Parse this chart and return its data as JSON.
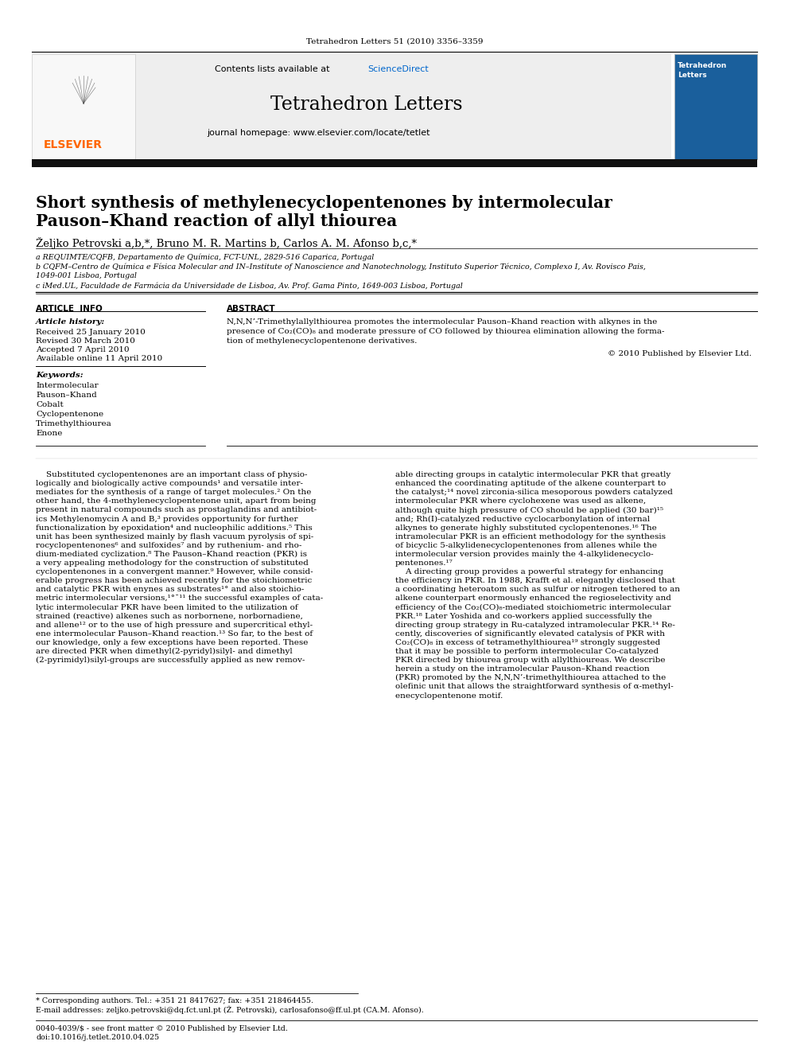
{
  "page_title": "Tetrahedron Letters 51 (2010) 3356–3359",
  "journal_name": "Tetrahedron Letters",
  "contents_text": "Contents lists available at ",
  "sciencedirect_text": "ScienceDirect",
  "homepage_text": "journal homepage: www.elsevier.com/locate/tetlet",
  "article_title_line1": "Short synthesis of methylenecyclopentenones by intermolecular",
  "article_title_line2": "Pauson–Khand reaction of allyl thiourea",
  "authors": "Željko Petrovski a,b,*, Bruno M. R. Martins b, Carlos A. M. Afonso b,c,*",
  "affil1": "a REQUIMTE/CQFB, Departamento de Química, FCT-UNL, 2829-516 Caparica, Portugal",
  "affil2": "b CQFM–Centro de Química e Física Molecular and IN–Institute of Nanoscience and Nanotechnology, Instituto Superior Técnico, Complexo I, Av. Rovisco Pais,",
  "affil2b": "1049-001 Lisboa, Portugal",
  "affil3": "c iMed.UL, Faculdade de Farmácia da Universidade de Lisboa, Av. Prof. Gama Pinto, 1649-003 Lisboa, Portugal",
  "article_info_header": "ARTICLE  INFO",
  "abstract_header": "ABSTRACT",
  "article_history_label": "Article history:",
  "received": "Received 25 January 2010",
  "revised": "Revised 30 March 2010",
  "accepted": "Accepted 7 April 2010",
  "available": "Available online 11 April 2010",
  "keywords_label": "Keywords:",
  "keywords": [
    "Intermolecular",
    "Pauson–Khand",
    "Cobalt",
    "Cyclopentenone",
    "Trimethylthiourea",
    "Enone"
  ],
  "abstract_lines": [
    "N,N,N’-Trimethylallylthiourea promotes the intermolecular Pauson–Khand reaction with alkynes in the",
    "presence of Co₂(CO)₈ and moderate pressure of CO followed by thiourea elimination allowing the forma-",
    "tion of methylenecyclopentenone derivatives."
  ],
  "copyright": "© 2010 Published by Elsevier Ltd.",
  "left_col_lines": [
    "    Substituted cyclopentenones are an important class of physio-",
    "logically and biologically active compounds¹ and versatile inter-",
    "mediates for the synthesis of a range of target molecules.² On the",
    "other hand, the 4-methylenecyclopentenone unit, apart from being",
    "present in natural compounds such as prostaglandins and antibiot-",
    "ics Methylenomycin A and B,³ provides opportunity for further",
    "functionalization by epoxidation⁴ and nucleophilic additions.⁵ This",
    "unit has been synthesized mainly by flash vacuum pyrolysis of spi-",
    "rocyclopentenones⁶ and sulfoxides⁷ and by ruthenium- and rho-",
    "dium-mediated cyclization.⁸ The Pauson–Khand reaction (PKR) is",
    "a very appealing methodology for the construction of substituted",
    "cyclopentenones in a convergent manner.⁹ However, while consid-",
    "erable progress has been achieved recently for the stoichiometric",
    "and catalytic PKR with enynes as substrates¹° and also stoichio-",
    "metric intermolecular versions,¹°ˉ¹¹ the successful examples of cata-",
    "lytic intermolecular PKR have been limited to the utilization of",
    "strained (reactive) alkenes such as norbornene, norbornadiene,",
    "and allene¹² or to the use of high pressure and supercritical ethyl-",
    "ene intermolecular Pauson–Khand reaction.¹³ So far, to the best of",
    "our knowledge, only a few exceptions have been reported. These",
    "are directed PKR when dimethyl(2-pyridyl)silyl- and dimethyl",
    "(2-pyrimidyl)silyl-groups are successfully applied as new remov-"
  ],
  "right_col_lines": [
    "able directing groups in catalytic intermolecular PKR that greatly",
    "enhanced the coordinating aptitude of the alkene counterpart to",
    "the catalyst;¹⁴ novel zirconia-silica mesoporous powders catalyzed",
    "intermolecular PKR where cyclohexene was used as alkene,",
    "although quite high pressure of CO should be applied (30 bar)¹⁵",
    "and; Rh(I)-catalyzed reductive cyclocarbonylation of internal",
    "alkynes to generate highly substituted cyclopentenones.¹⁶ The",
    "intramolecular PKR is an efficient methodology for the synthesis",
    "of bicyclic 5-alkylidenecyclopentenones from allenes while the",
    "intermolecular version provides mainly the 4-alkylidenecyclo-",
    "pentenones.¹⁷",
    "    A directing group provides a powerful strategy for enhancing",
    "the efficiency in PKR. In 1988, Krafft et al. elegantly disclosed that",
    "a coordinating heteroatom such as sulfur or nitrogen tethered to an",
    "alkene counterpart enormously enhanced the regioselectivity and",
    "efficiency of the Co₂(CO)₈-mediated stoichiometric intermolecular",
    "PKR.¹⁸ Later Yoshida and co-workers applied successfully the",
    "directing group strategy in Ru-catalyzed intramolecular PKR.¹⁴ Re-",
    "cently, discoveries of significantly elevated catalysis of PKR with",
    "Co₂(CO)₈ in excess of tetramethylthiourea¹⁹ strongly suggested",
    "that it may be possible to perform intermolecular Co-catalyzed",
    "PKR directed by thiourea group with allylthioureas. We describe",
    "herein a study on the intramolecular Pauson–Khand reaction",
    "(PKR) promoted by the N,N,N’-trimethylthiourea attached to the",
    "olefinic unit that allows the straightforward synthesis of α-methyl-",
    "enecyclopentenone motif."
  ],
  "footer_line1": "* Corresponding authors. Tel.: +351 21 8417627; fax: +351 218464455.",
  "footer_line2": "E-mail addresses: zeljko.petrovski@dq.fct.unl.pt (Ž. Petrovski), carlosafonso@ff.ul.pt (CA.M. Afonso).",
  "footer_issn": "0040-4039/$ - see front matter © 2010 Published by Elsevier Ltd.",
  "footer_doi": "doi:10.1016/j.tetlet.2010.04.025",
  "bg_color": "#ffffff",
  "elsevier_orange": "#ff6600",
  "sciencedirect_blue": "#0066cc",
  "cover_blue": "#1a5f9c"
}
